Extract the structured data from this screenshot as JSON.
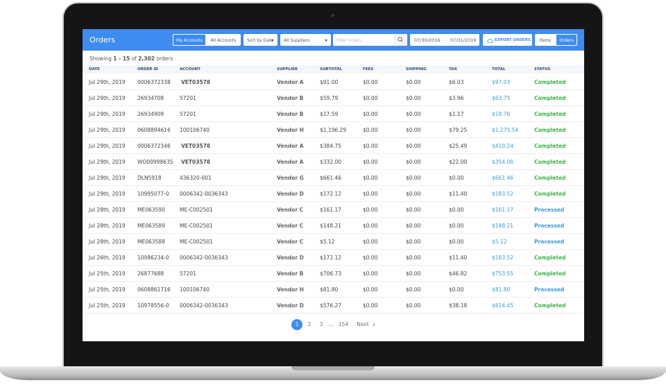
{
  "header": {
    "title": "Orders",
    "account_toggle": [
      "My Accounts",
      "All Accounts"
    ],
    "sort": "Sort by Date",
    "supplier_filter": "All Suppliers",
    "search_placeholder": "Filter orders...",
    "date_from": "07/30/2016",
    "date_to": "07/31/2019",
    "export": "EXPORT ORDERS",
    "view_toggle": [
      "Items",
      "Orders"
    ]
  },
  "summary": [
    "Showing ",
    "1 - 15",
    " of ",
    "2,302",
    " orders"
  ],
  "table": {
    "columns": [
      "DATE",
      "ORDER ID",
      "ACCOUNT",
      "SUPPLIER",
      "SUBTOTAL",
      "FEES",
      "SHIPPING",
      "TAX",
      "TOTAL",
      "STATUS"
    ],
    "rows": [
      [
        "Jul 29th, 2019",
        "0006372338",
        "VET03578",
        "Vendor A",
        "$91.00",
        "$0.00",
        "$0.00",
        "$6.03",
        "$97.03",
        "Completed"
      ],
      [
        "Jul 29th, 2019",
        "26934708",
        "57201",
        "Vendor B",
        "$59.79",
        "$0.00",
        "$0.00",
        "$3.96",
        "$63.75",
        "Completed"
      ],
      [
        "Jul 29th, 2019",
        "26934909",
        "57201",
        "Vendor B",
        "$17.59",
        "$0.00",
        "$0.00",
        "$1.17",
        "$18.76",
        "Completed"
      ],
      [
        "Jul 29th, 2019",
        "0608894616",
        "100106740",
        "Vendor H",
        "$1,196.29",
        "$0.00",
        "$0.00",
        "$79.25",
        "$1,275.54",
        "Completed"
      ],
      [
        "Jul 29th, 2019",
        "0006372346",
        "VET03578",
        "Vendor A",
        "$384.75",
        "$0.00",
        "$0.00",
        "$25.49",
        "$410.24",
        "Completed"
      ],
      [
        "Jul 29th, 2019",
        "WO00998635",
        "VET03578",
        "Vendor A",
        "$332.00",
        "$0.00",
        "$0.00",
        "$22.00",
        "$354.00",
        "Completed"
      ],
      [
        "Jul 29th, 2019",
        "DLN5918",
        "436320-001",
        "Vendor G",
        "$661.46",
        "$0.00",
        "$0.00",
        "$0.00",
        "$661.46",
        "Completed"
      ],
      [
        "Jul 29th, 2019",
        "10995077-0",
        "0006342-0036343",
        "Vendor D",
        "$172.12",
        "$0.00",
        "$0.00",
        "$11.40",
        "$183.52",
        "Completed"
      ],
      [
        "Jul 28th, 2019",
        "ME063590",
        "ME-C002501",
        "Vendor C",
        "$161.17",
        "$0.00",
        "$0.00",
        "$0.00",
        "$161.17",
        "Processed"
      ],
      [
        "Jul 28th, 2019",
        "ME063589",
        "ME-C002501",
        "Vendor C",
        "$148.21",
        "$0.00",
        "$0.00",
        "$0.00",
        "$148.21",
        "Processed"
      ],
      [
        "Jul 28th, 2019",
        "ME063588",
        "ME-C002501",
        "Vendor C",
        "$5.12",
        "$0.00",
        "$0.00",
        "$0.00",
        "$5.12",
        "Processed"
      ],
      [
        "Jul 26th, 2019",
        "10986234-0",
        "0006342-0036343",
        "Vendor D",
        "$172.12",
        "$0.00",
        "$0.00",
        "$11.40",
        "$183.52",
        "Completed"
      ],
      [
        "Jul 25th, 2019",
        "26877688",
        "57201",
        "Vendor B",
        "$706.73",
        "$0.00",
        "$0.00",
        "$46.82",
        "$753.55",
        "Completed"
      ],
      [
        "Jul 25th, 2019",
        "0608861716",
        "100106740",
        "Vendor H",
        "$81.80",
        "$0.00",
        "$0.00",
        "$0.00",
        "$81.80",
        "Processed"
      ],
      [
        "Jul 25th, 2019",
        "10978556-0",
        "0006342-0036343",
        "Vendor D",
        "$576.27",
        "$0.00",
        "$0.00",
        "$38.18",
        "$614.45",
        "Completed"
      ]
    ]
  },
  "pagination": {
    "pages": [
      "1",
      "2",
      "3",
      "…",
      "154"
    ],
    "next": "Next"
  }
}
